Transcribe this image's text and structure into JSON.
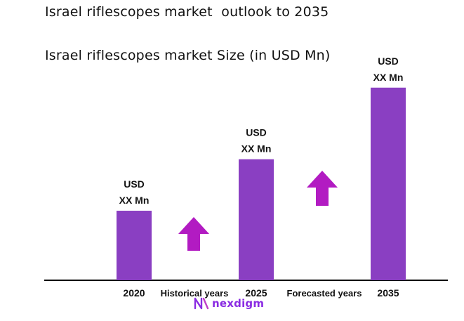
{
  "title": "Israel riflescopes market  outlook to 2035",
  "chart_data": {
    "type": "bar",
    "title": "Israel riflescopes market Size (in USD Mn)",
    "categories": [
      "2020",
      "2025",
      "2035"
    ],
    "values": [
      1.0,
      1.74,
      2.77
    ],
    "ylim": [
      0,
      3.0
    ],
    "data_labels": [
      [
        "USD",
        "XX Mn"
      ],
      [
        "USD",
        "XX Mn"
      ],
      [
        "USD",
        "XX Mn"
      ]
    ],
    "period_labels": [
      "Historical years",
      "Forecasted years"
    ],
    "colors": {
      "bar": "#8a3fc2",
      "arrow": "#b21bc2",
      "axis": "#000000"
    },
    "grid": false,
    "legend": "none"
  },
  "logo": {
    "text": "nexdigm",
    "icon": "nexdigm-logo-icon"
  }
}
